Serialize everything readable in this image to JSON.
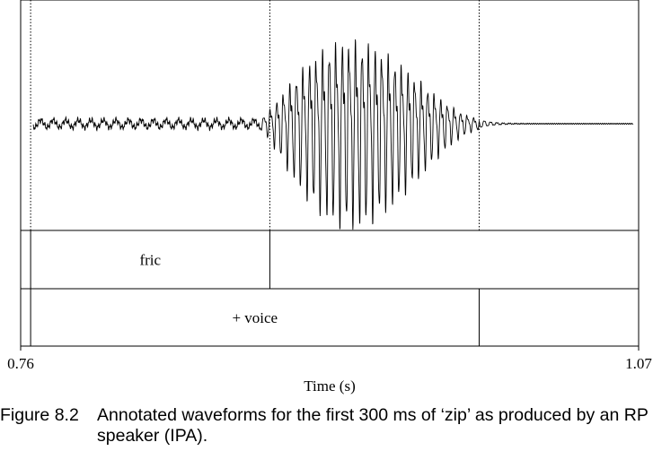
{
  "chart_data": {
    "type": "line",
    "title": "",
    "xlabel": "Time (s)",
    "ylabel": "",
    "xlim": [
      0.76,
      1.07
    ],
    "x_ticks": [
      "0.76",
      "1.07"
    ],
    "boundaries": [
      0.765,
      0.885,
      0.99
    ],
    "tiers": [
      {
        "name": "tier-1",
        "intervals": [
          {
            "start": 0.765,
            "end": 0.885,
            "label": "fric"
          },
          {
            "start": 0.885,
            "end": 1.07,
            "label": ""
          }
        ]
      },
      {
        "name": "tier-2",
        "intervals": [
          {
            "start": 0.765,
            "end": 0.99,
            "label": "+ voice"
          },
          {
            "start": 0.99,
            "end": 1.07,
            "label": ""
          }
        ]
      }
    ],
    "grid": false,
    "legend": "none"
  },
  "caption": {
    "number": "Figure 8.2",
    "text": "Annotated waveforms for the first 300 ms of ‘zip’ as produced by an RP speaker (IPA)."
  }
}
